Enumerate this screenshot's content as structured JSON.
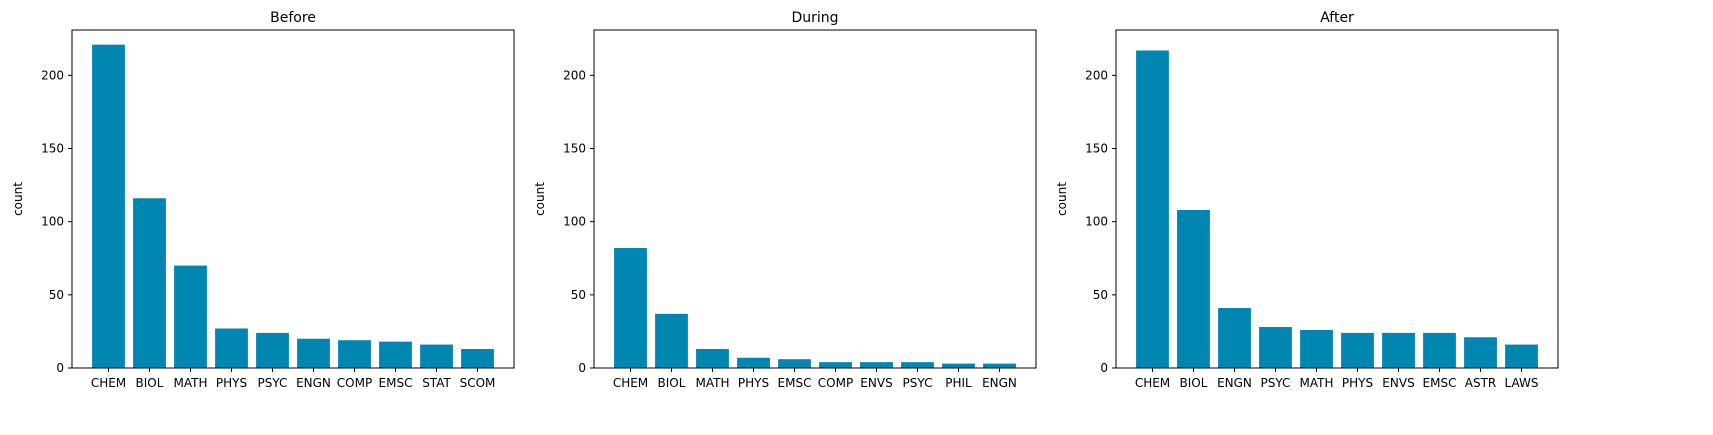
{
  "bar_color": "#0086B0",
  "chart_data": [
    {
      "type": "bar",
      "title": "Before",
      "xlabel": "",
      "ylabel": "count",
      "ylim": [
        0,
        231
      ],
      "yticks": [
        0,
        50,
        100,
        150,
        200
      ],
      "categories": [
        "CHEM",
        "BIOL",
        "MATH",
        "PHYS",
        "PSYC",
        "ENGN",
        "COMP",
        "EMSC",
        "STAT",
        "SCOM"
      ],
      "values": [
        221,
        116,
        70,
        27,
        24,
        20,
        19,
        18,
        16,
        13
      ]
    },
    {
      "type": "bar",
      "title": "During",
      "xlabel": "",
      "ylabel": "count",
      "ylim": [
        0,
        231
      ],
      "yticks": [
        0,
        50,
        100,
        150,
        200
      ],
      "categories": [
        "CHEM",
        "BIOL",
        "MATH",
        "PHYS",
        "EMSC",
        "COMP",
        "ENVS",
        "PSYC",
        "PHIL",
        "ENGN"
      ],
      "values": [
        82,
        37,
        13,
        7,
        6,
        4,
        4,
        4,
        3,
        3
      ]
    },
    {
      "type": "bar",
      "title": "After",
      "xlabel": "",
      "ylabel": "count",
      "ylim": [
        0,
        231
      ],
      "yticks": [
        0,
        50,
        100,
        150,
        200
      ],
      "categories": [
        "CHEM",
        "BIOL",
        "ENGN",
        "PSYC",
        "MATH",
        "PHYS",
        "ENVS",
        "EMSC",
        "ASTR",
        "LAWS"
      ],
      "values": [
        217,
        108,
        41,
        28,
        26,
        24,
        24,
        24,
        21,
        16
      ]
    }
  ]
}
